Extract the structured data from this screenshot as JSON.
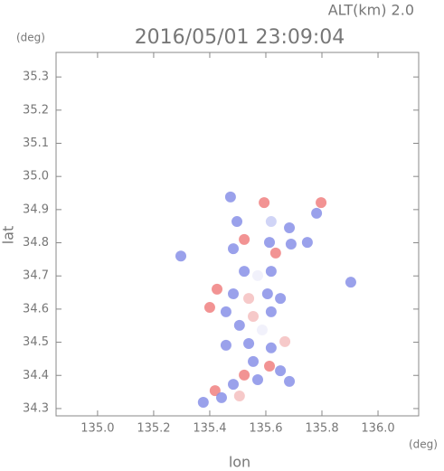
{
  "chart_data": {
    "type": "scatter",
    "title": "2016/05/01 23:09:04",
    "subtitle": "ALT(km) 2.0",
    "x_label": "lon",
    "y_label": "lat",
    "x_unit": "(deg)",
    "y_unit": "(deg)",
    "xlim": [
      134.852,
      136.145
    ],
    "ylim": [
      34.278,
      35.374
    ],
    "xticks": [
      {
        "value": 135,
        "label": "135.0"
      },
      135.2,
      135.4,
      135.6,
      135.8,
      {
        "value": 136,
        "label": "136.0"
      }
    ],
    "yticks": [
      34.3,
      34.4,
      34.5,
      34.6,
      34.7,
      34.8,
      34.9,
      {
        "value": 35,
        "label": "35.0"
      },
      35.1,
      35.2,
      35.3
    ],
    "grid": false,
    "x": [
      135.474,
      135.594,
      135.797,
      135.781,
      135.497,
      135.619,
      135.684,
      135.523,
      135.613,
      135.69,
      135.748,
      135.635,
      135.484,
      135.297,
      135.523,
      135.571,
      135.619,
      135.426,
      135.484,
      135.539,
      135.606,
      135.4,
      135.458,
      135.555,
      135.619,
      135.652,
      135.506,
      135.587,
      135.539,
      135.619,
      135.668,
      135.458,
      135.903,
      135.555,
      135.613,
      135.652,
      135.523,
      135.571,
      135.484,
      135.419,
      135.442,
      135.506,
      135.377,
      135.684
    ],
    "values": [
      34.938,
      34.921,
      34.921,
      34.889,
      34.864,
      34.864,
      34.845,
      34.81,
      34.801,
      34.796,
      34.801,
      34.769,
      34.782,
      34.76,
      34.714,
      34.701,
      34.714,
      34.66,
      34.646,
      34.632,
      34.646,
      34.605,
      34.592,
      34.578,
      34.592,
      34.632,
      34.551,
      34.537,
      34.496,
      34.483,
      34.502,
      34.491,
      34.681,
      34.442,
      34.428,
      34.414,
      34.401,
      34.387,
      34.373,
      34.354,
      34.333,
      34.338,
      34.319,
      34.382
    ],
    "colors": [
      "#8890e8",
      "#f08080",
      "#f08080",
      "#8890e8",
      "#8890e8",
      "#c8ccf4",
      "#8890e8",
      "#f08080",
      "#8890e8",
      "#8890e8",
      "#8890e8",
      "#f08080",
      "#8890e8",
      "#8890e8",
      "#8890e8",
      "#eeeefa",
      "#8890e8",
      "#f08080",
      "#8890e8",
      "#f4c0c0",
      "#8890e8",
      "#f08080",
      "#8890e8",
      "#f4c0c0",
      "#8890e8",
      "#8890e8",
      "#8890e8",
      "#eeeefa",
      "#8890e8",
      "#8890e8",
      "#f4c0c0",
      "#8890e8",
      "#8890e8",
      "#8890e8",
      "#f08080",
      "#8890e8",
      "#f08080",
      "#8890e8",
      "#8890e8",
      "#f08080",
      "#8890e8",
      "#f4c0c0",
      "#8890e8",
      "#8890e8"
    ]
  }
}
